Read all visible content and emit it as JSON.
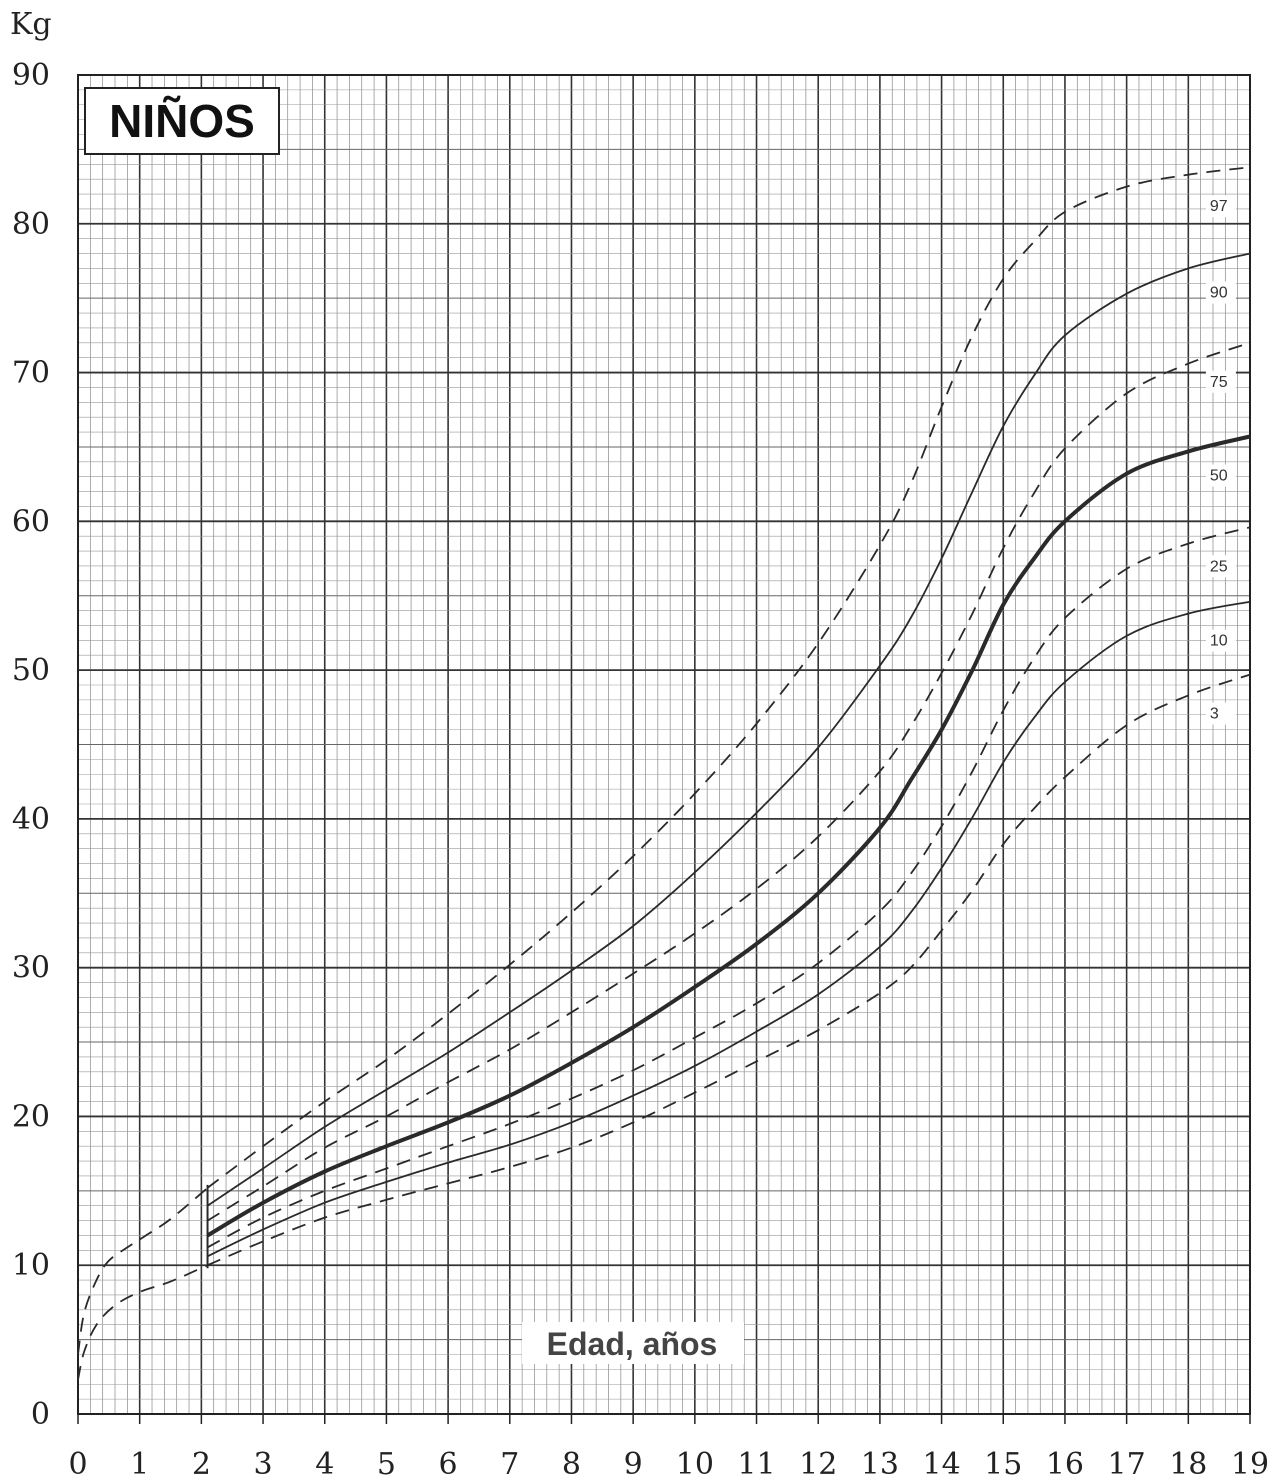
{
  "chart_data": {
    "type": "line",
    "title": "NIÑOS",
    "xlabel": "Edad, años",
    "ylabel": "Kg",
    "xlim": [
      0,
      19
    ],
    "ylim": [
      0,
      90
    ],
    "x_ticks": [
      0,
      1,
      2,
      3,
      4,
      5,
      6,
      7,
      8,
      9,
      10,
      11,
      12,
      13,
      14,
      15,
      16,
      17,
      18,
      19
    ],
    "y_ticks": [
      0,
      10,
      20,
      30,
      40,
      50,
      60,
      70,
      80,
      90
    ],
    "grid": true,
    "series": [
      {
        "name": "97",
        "style": "dashed",
        "weight": "normal",
        "x": [
          2.1,
          3,
          4,
          5,
          6,
          7,
          8,
          9,
          10,
          11,
          12,
          13,
          13.5,
          14,
          14.5,
          15,
          15.5,
          16,
          17,
          18,
          19
        ],
        "y": [
          15.2,
          18,
          21,
          23.8,
          26.9,
          30.2,
          33.7,
          37.5,
          41.7,
          46.4,
          51.8,
          58.4,
          62.5,
          67.7,
          72.5,
          76.3,
          78.8,
          80.8,
          82.5,
          83.3,
          83.8
        ]
      },
      {
        "name": "90",
        "style": "solid",
        "weight": "normal",
        "x": [
          2.1,
          3,
          4,
          5,
          6,
          7,
          8,
          9,
          10,
          11,
          12,
          13,
          13.5,
          14,
          14.5,
          15,
          15.5,
          16,
          17,
          18,
          19
        ],
        "y": [
          14,
          16.5,
          19.3,
          21.8,
          24.3,
          27,
          29.8,
          32.8,
          36.4,
          40.4,
          44.8,
          50.3,
          53.5,
          57.5,
          62,
          66.4,
          69.8,
          72.5,
          75.3,
          77,
          78
        ]
      },
      {
        "name": "75",
        "style": "dashed",
        "weight": "normal",
        "x": [
          2.1,
          3,
          4,
          5,
          6,
          7,
          8,
          9,
          10,
          11,
          12,
          13,
          13.5,
          14,
          14.5,
          15,
          15.5,
          16,
          17,
          18,
          19
        ],
        "y": [
          13,
          15.3,
          17.9,
          20,
          22.3,
          24.5,
          27,
          29.6,
          32.3,
          35.3,
          38.8,
          43.2,
          46.2,
          49.8,
          53.8,
          58.2,
          61.9,
          64.9,
          68.6,
          70.6,
          72
        ]
      },
      {
        "name": "50",
        "style": "solid",
        "weight": "bold",
        "x": [
          2.1,
          3,
          4,
          5,
          6,
          7,
          8,
          9,
          10,
          11,
          12,
          13,
          13.5,
          14,
          14.5,
          15,
          15.5,
          16,
          17,
          18,
          19
        ],
        "y": [
          12,
          14.2,
          16.3,
          18,
          19.6,
          21.4,
          23.6,
          26,
          28.7,
          31.6,
          35,
          39.4,
          42.6,
          46,
          50,
          54.4,
          57.5,
          60,
          63.2,
          64.7,
          65.7
        ]
      },
      {
        "name": "25",
        "style": "dashed",
        "weight": "normal",
        "x": [
          2.1,
          3,
          4,
          5,
          6,
          7,
          8,
          9,
          10,
          11,
          12,
          13,
          13.5,
          14,
          14.5,
          15,
          15.5,
          16,
          17,
          18,
          19
        ],
        "y": [
          11.2,
          13.2,
          15,
          16.5,
          18,
          19.5,
          21.2,
          23.1,
          25.3,
          27.6,
          30.3,
          33.8,
          36.3,
          39.5,
          43.2,
          47.3,
          50.8,
          53.5,
          56.8,
          58.5,
          59.6
        ]
      },
      {
        "name": "10",
        "style": "solid",
        "weight": "normal",
        "x": [
          2.1,
          3,
          4,
          5,
          6,
          7,
          8,
          9,
          10,
          11,
          12,
          13,
          13.5,
          14,
          14.5,
          15,
          15.5,
          16,
          17,
          18,
          19
        ],
        "y": [
          10.6,
          12.4,
          14.2,
          15.6,
          16.9,
          18.1,
          19.6,
          21.4,
          23.4,
          25.7,
          28.2,
          31.4,
          33.7,
          36.7,
          40.1,
          43.8,
          46.8,
          49.2,
          52.3,
          53.8,
          54.6
        ]
      },
      {
        "name": "3",
        "style": "dashed",
        "weight": "normal",
        "x": [
          2.1,
          3,
          4,
          5,
          6,
          7,
          8,
          9,
          10,
          11,
          12,
          13,
          13.5,
          14,
          14.5,
          15,
          15.5,
          16,
          17,
          18,
          19
        ],
        "y": [
          10,
          11.6,
          13.2,
          14.4,
          15.5,
          16.6,
          17.9,
          19.6,
          21.6,
          23.7,
          25.8,
          28.3,
          30,
          32.5,
          35.2,
          38.3,
          40.7,
          42.8,
          46.3,
          48.3,
          49.7
        ]
      },
      {
        "name": "",
        "style": "dashed",
        "weight": "normal",
        "x": [
          0,
          0.1,
          0.3,
          0.5,
          0.8,
          1.1,
          1.5,
          2.1
        ],
        "y": [
          4,
          6.8,
          9,
          10.3,
          11.2,
          12,
          13.1,
          15.2
        ]
      },
      {
        "name": "",
        "style": "dashed",
        "weight": "normal",
        "x": [
          0,
          0.1,
          0.3,
          0.6,
          1,
          1.5,
          2.1
        ],
        "y": [
          2.3,
          4.2,
          6,
          7.3,
          8.2,
          8.9,
          10
        ]
      }
    ]
  }
}
